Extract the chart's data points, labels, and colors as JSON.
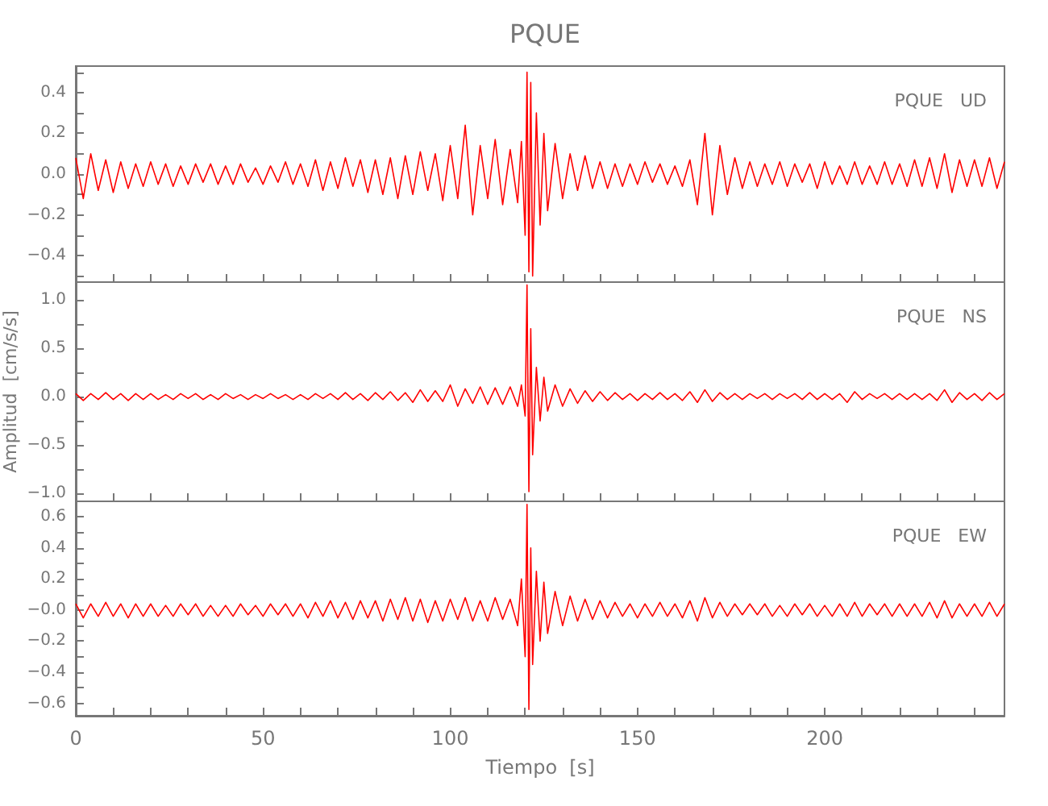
{
  "chart_data": [
    {
      "type": "line",
      "title": "PQUE",
      "annotations": [
        "PQUE   UD"
      ],
      "marker": "none",
      "line_style": "solid",
      "tick_labels": "y",
      "xlim": [
        0,
        248
      ],
      "xticks": [
        {
          "value": 0,
          "label": null
        },
        {
          "value": 10,
          "label": null
        },
        {
          "value": 20,
          "label": null
        },
        {
          "value": 30,
          "label": null
        },
        {
          "value": 40,
          "label": null
        },
        {
          "value": 50,
          "label": null
        },
        {
          "value": 60,
          "label": null
        },
        {
          "value": 70,
          "label": null
        },
        {
          "value": 80,
          "label": null
        },
        {
          "value": 90,
          "label": null
        },
        {
          "value": 100,
          "label": null
        },
        {
          "value": 110,
          "label": null
        },
        {
          "value": 120,
          "label": null
        },
        {
          "value": 130,
          "label": null
        },
        {
          "value": 140,
          "label": null
        },
        {
          "value": 150,
          "label": null
        },
        {
          "value": 160,
          "label": null
        },
        {
          "value": 170,
          "label": null
        },
        {
          "value": 180,
          "label": null
        },
        {
          "value": 190,
          "label": null
        },
        {
          "value": 200,
          "label": null
        },
        {
          "value": 210,
          "label": null
        },
        {
          "value": 220,
          "label": null
        },
        {
          "value": 230,
          "label": null
        },
        {
          "value": 240,
          "label": null
        }
      ],
      "ylim": [
        -0.53,
        0.53
      ],
      "yticks": [
        {
          "value": -0.5,
          "label": null
        },
        {
          "value": -0.4,
          "label": "−0.4"
        },
        {
          "value": -0.3,
          "label": null
        },
        {
          "value": -0.2,
          "label": "−0.2"
        },
        {
          "value": -0.1,
          "label": null
        },
        {
          "value": 0,
          "label": "0.0"
        },
        {
          "value": 0.1,
          "label": null
        },
        {
          "value": 0.2,
          "label": "0.2"
        },
        {
          "value": 0.3,
          "label": null
        },
        {
          "value": 0.4,
          "label": "0.4"
        },
        {
          "value": 0.5,
          "label": null
        }
      ],
      "x": [
        0,
        2,
        4,
        6,
        8,
        10,
        12,
        14,
        16,
        18,
        20,
        22,
        24,
        26,
        28,
        30,
        32,
        34,
        36,
        38,
        40,
        42,
        44,
        46,
        48,
        50,
        52,
        54,
        56,
        58,
        60,
        62,
        64,
        66,
        68,
        70,
        72,
        74,
        76,
        78,
        80,
        82,
        84,
        86,
        88,
        90,
        92,
        94,
        96,
        98,
        100,
        102,
        104,
        106,
        108,
        110,
        112,
        114,
        116,
        118,
        119,
        120,
        120.5,
        121,
        121.5,
        122,
        123,
        124,
        125,
        126,
        128,
        130,
        132,
        134,
        136,
        138,
        140,
        142,
        144,
        146,
        148,
        150,
        152,
        154,
        156,
        158,
        160,
        162,
        164,
        166,
        168,
        170,
        172,
        174,
        176,
        178,
        180,
        182,
        184,
        186,
        188,
        190,
        192,
        194,
        196,
        198,
        200,
        202,
        204,
        206,
        208,
        210,
        212,
        214,
        216,
        218,
        220,
        222,
        224,
        226,
        228,
        230,
        232,
        234,
        236,
        238,
        240,
        242,
        244,
        246,
        248
      ],
      "series": [
        {
          "color": "#ff0000",
          "values": [
            0.08,
            -0.12,
            0.1,
            -0.08,
            0.07,
            -0.09,
            0.06,
            -0.07,
            0.05,
            -0.06,
            0.06,
            -0.05,
            0.05,
            -0.06,
            0.04,
            -0.05,
            0.05,
            -0.04,
            0.05,
            -0.05,
            0.04,
            -0.05,
            0.05,
            -0.04,
            0.03,
            -0.05,
            0.04,
            -0.04,
            0.06,
            -0.05,
            0.05,
            -0.06,
            0.07,
            -0.08,
            0.06,
            -0.07,
            0.08,
            -0.06,
            0.07,
            -0.09,
            0.07,
            -0.1,
            0.08,
            -0.12,
            0.09,
            -0.1,
            0.11,
            -0.08,
            0.1,
            -0.13,
            0.14,
            -0.12,
            0.24,
            -0.2,
            0.14,
            -0.12,
            0.17,
            -0.15,
            0.12,
            -0.14,
            0.16,
            -0.3,
            0.5,
            -0.48,
            0.45,
            -0.5,
            0.3,
            -0.25,
            0.2,
            -0.18,
            0.15,
            -0.12,
            0.1,
            -0.08,
            0.09,
            -0.07,
            0.06,
            -0.07,
            0.05,
            -0.06,
            0.05,
            -0.05,
            0.06,
            -0.04,
            0.05,
            -0.05,
            0.04,
            -0.06,
            0.07,
            -0.15,
            0.2,
            -0.2,
            0.14,
            -0.1,
            0.08,
            -0.07,
            0.06,
            -0.06,
            0.05,
            -0.05,
            0.06,
            -0.06,
            0.05,
            -0.04,
            0.05,
            -0.07,
            0.06,
            -0.05,
            0.04,
            -0.05,
            0.06,
            -0.05,
            0.04,
            -0.05,
            0.06,
            -0.05,
            0.05,
            -0.06,
            0.07,
            -0.06,
            0.08,
            -0.07,
            0.1,
            -0.09,
            0.07,
            -0.06,
            0.07,
            -0.06,
            0.08,
            -0.07,
            0.06
          ]
        }
      ]
    },
    {
      "type": "line",
      "ylabel": "Amplitud  [cm/s/s]",
      "annotations": [
        "PQUE   NS"
      ],
      "marker": "none",
      "line_style": "solid",
      "tick_labels": "y",
      "xlim": [
        0,
        248
      ],
      "xticks": [
        {
          "value": 0,
          "label": null
        },
        {
          "value": 10,
          "label": null
        },
        {
          "value": 20,
          "label": null
        },
        {
          "value": 30,
          "label": null
        },
        {
          "value": 40,
          "label": null
        },
        {
          "value": 50,
          "label": null
        },
        {
          "value": 60,
          "label": null
        },
        {
          "value": 70,
          "label": null
        },
        {
          "value": 80,
          "label": null
        },
        {
          "value": 90,
          "label": null
        },
        {
          "value": 100,
          "label": null
        },
        {
          "value": 110,
          "label": null
        },
        {
          "value": 120,
          "label": null
        },
        {
          "value": 130,
          "label": null
        },
        {
          "value": 140,
          "label": null
        },
        {
          "value": 150,
          "label": null
        },
        {
          "value": 160,
          "label": null
        },
        {
          "value": 170,
          "label": null
        },
        {
          "value": 180,
          "label": null
        },
        {
          "value": 190,
          "label": null
        },
        {
          "value": 200,
          "label": null
        },
        {
          "value": 210,
          "label": null
        },
        {
          "value": 220,
          "label": null
        },
        {
          "value": 230,
          "label": null
        },
        {
          "value": 240,
          "label": null
        }
      ],
      "ylim": [
        -1.08,
        1.18
      ],
      "yticks": [
        {
          "value": -1,
          "label": "−1.0"
        },
        {
          "value": -0.75,
          "label": null
        },
        {
          "value": -0.5,
          "label": "−0.5"
        },
        {
          "value": -0.25,
          "label": null
        },
        {
          "value": 0,
          "label": "0.0"
        },
        {
          "value": 0.25,
          "label": null
        },
        {
          "value": 0.5,
          "label": "0.5"
        },
        {
          "value": 0.75,
          "label": null
        },
        {
          "value": 1,
          "label": "1.0"
        }
      ],
      "x": [
        0,
        2,
        4,
        6,
        8,
        10,
        12,
        14,
        16,
        18,
        20,
        22,
        24,
        26,
        28,
        30,
        32,
        34,
        36,
        38,
        40,
        42,
        44,
        46,
        48,
        50,
        52,
        54,
        56,
        58,
        60,
        62,
        64,
        66,
        68,
        70,
        72,
        74,
        76,
        78,
        80,
        82,
        84,
        86,
        88,
        90,
        92,
        94,
        96,
        98,
        100,
        102,
        104,
        106,
        108,
        110,
        112,
        114,
        116,
        118,
        119,
        120,
        120.5,
        121,
        121.5,
        122,
        123,
        124,
        125,
        126,
        128,
        130,
        132,
        134,
        136,
        138,
        140,
        142,
        144,
        146,
        148,
        150,
        152,
        154,
        156,
        158,
        160,
        162,
        164,
        166,
        168,
        170,
        172,
        174,
        176,
        178,
        180,
        182,
        184,
        186,
        188,
        190,
        192,
        194,
        196,
        198,
        200,
        202,
        204,
        206,
        208,
        210,
        212,
        214,
        216,
        218,
        220,
        222,
        224,
        226,
        228,
        230,
        232,
        234,
        236,
        238,
        240,
        242,
        244,
        246,
        248
      ],
      "series": [
        {
          "color": "#ff0000",
          "values": [
            0.03,
            -0.04,
            0.03,
            -0.03,
            0.04,
            -0.03,
            0.03,
            -0.04,
            0.03,
            -0.03,
            0.03,
            -0.03,
            0.02,
            -0.03,
            0.03,
            -0.02,
            0.03,
            -0.03,
            0.02,
            -0.03,
            0.03,
            -0.02,
            0.02,
            -0.03,
            0.02,
            -0.02,
            0.03,
            -0.02,
            0.02,
            -0.03,
            0.02,
            -0.03,
            0.03,
            -0.02,
            0.03,
            -0.03,
            0.04,
            -0.03,
            0.03,
            -0.04,
            0.04,
            -0.03,
            0.05,
            -0.04,
            0.04,
            -0.06,
            0.07,
            -0.05,
            0.06,
            -0.05,
            0.12,
            -0.1,
            0.08,
            -0.07,
            0.1,
            -0.08,
            0.09,
            -0.08,
            0.1,
            -0.1,
            0.12,
            -0.2,
            1.15,
            -0.98,
            0.7,
            -0.6,
            0.3,
            -0.25,
            0.2,
            -0.15,
            0.12,
            -0.1,
            0.08,
            -0.07,
            0.06,
            -0.05,
            0.05,
            -0.04,
            0.04,
            -0.03,
            0.03,
            -0.04,
            0.03,
            -0.03,
            0.04,
            -0.03,
            0.03,
            -0.04,
            0.05,
            -0.06,
            0.07,
            -0.05,
            0.04,
            -0.03,
            0.03,
            -0.03,
            0.03,
            -0.02,
            0.03,
            -0.03,
            0.03,
            -0.02,
            0.03,
            -0.03,
            0.04,
            -0.03,
            0.03,
            -0.03,
            0.03,
            -0.06,
            0.05,
            -0.03,
            0.03,
            -0.02,
            0.03,
            -0.03,
            0.03,
            -0.03,
            0.03,
            -0.03,
            0.03,
            -0.04,
            0.07,
            -0.06,
            0.04,
            -0.03,
            0.03,
            -0.04,
            0.04,
            -0.03,
            0.03
          ]
        }
      ]
    },
    {
      "type": "line",
      "xlabel": "Tiempo  [s]",
      "annotations": [
        "PQUE   EW"
      ],
      "marker": "none",
      "line_style": "solid",
      "xlim": [
        0,
        248
      ],
      "xticks": [
        0,
        {
          "value": 10,
          "label": null
        },
        {
          "value": 20,
          "label": null
        },
        {
          "value": 30,
          "label": null
        },
        {
          "value": 40,
          "label": null
        },
        50,
        {
          "value": 60,
          "label": null
        },
        {
          "value": 70,
          "label": null
        },
        {
          "value": 80,
          "label": null
        },
        {
          "value": 90,
          "label": null
        },
        100,
        {
          "value": 110,
          "label": null
        },
        {
          "value": 120,
          "label": null
        },
        {
          "value": 130,
          "label": null
        },
        {
          "value": 140,
          "label": null
        },
        150,
        {
          "value": 160,
          "label": null
        },
        {
          "value": 170,
          "label": null
        },
        {
          "value": 180,
          "label": null
        },
        {
          "value": 190,
          "label": null
        },
        200,
        {
          "value": 210,
          "label": null
        },
        {
          "value": 220,
          "label": null
        },
        {
          "value": 230,
          "label": null
        },
        {
          "value": 240,
          "label": null
        }
      ],
      "ylim": [
        -0.68,
        0.7
      ],
      "yticks": [
        {
          "value": -0.6,
          "label": "−0.6"
        },
        {
          "value": -0.5,
          "label": null
        },
        {
          "value": -0.4,
          "label": "−0.4"
        },
        {
          "value": -0.3,
          "label": null
        },
        {
          "value": -0.2,
          "label": "−0.2"
        },
        {
          "value": -0.1,
          "label": null
        },
        {
          "value": 0,
          "label": "−0.0"
        },
        {
          "value": 0.1,
          "label": null
        },
        {
          "value": 0.2,
          "label": "0.2"
        },
        {
          "value": 0.3,
          "label": null
        },
        {
          "value": 0.4,
          "label": "0.4"
        },
        {
          "value": 0.5,
          "label": null
        },
        {
          "value": 0.6,
          "label": "0.6"
        }
      ],
      "x": [
        0,
        2,
        4,
        6,
        8,
        10,
        12,
        14,
        16,
        18,
        20,
        22,
        24,
        26,
        28,
        30,
        32,
        34,
        36,
        38,
        40,
        42,
        44,
        46,
        48,
        50,
        52,
        54,
        56,
        58,
        60,
        62,
        64,
        66,
        68,
        70,
        72,
        74,
        76,
        78,
        80,
        82,
        84,
        86,
        88,
        90,
        92,
        94,
        96,
        98,
        100,
        102,
        104,
        106,
        108,
        110,
        112,
        114,
        116,
        118,
        119,
        120,
        120.5,
        121,
        121.5,
        122,
        123,
        124,
        125,
        126,
        128,
        130,
        132,
        134,
        136,
        138,
        140,
        142,
        144,
        146,
        148,
        150,
        152,
        154,
        156,
        158,
        160,
        162,
        164,
        166,
        168,
        170,
        172,
        174,
        176,
        178,
        180,
        182,
        184,
        186,
        188,
        190,
        192,
        194,
        196,
        198,
        200,
        202,
        204,
        206,
        208,
        210,
        212,
        214,
        216,
        218,
        220,
        222,
        224,
        226,
        228,
        230,
        232,
        234,
        236,
        238,
        240,
        242,
        244,
        246,
        248
      ],
      "series": [
        {
          "color": "#ff0000",
          "values": [
            0.04,
            -0.05,
            0.04,
            -0.04,
            0.05,
            -0.04,
            0.04,
            -0.05,
            0.04,
            -0.04,
            0.04,
            -0.04,
            0.03,
            -0.04,
            0.04,
            -0.03,
            0.04,
            -0.04,
            0.03,
            -0.04,
            0.03,
            -0.04,
            0.04,
            -0.03,
            0.03,
            -0.04,
            0.04,
            -0.03,
            0.04,
            -0.04,
            0.04,
            -0.05,
            0.05,
            -0.04,
            0.06,
            -0.05,
            0.05,
            -0.06,
            0.06,
            -0.05,
            0.06,
            -0.07,
            0.07,
            -0.06,
            0.08,
            -0.07,
            0.07,
            -0.08,
            0.06,
            -0.07,
            0.07,
            -0.06,
            0.08,
            -0.07,
            0.06,
            -0.07,
            0.08,
            -0.06,
            0.07,
            -0.1,
            0.2,
            -0.3,
            0.68,
            -0.64,
            0.4,
            -0.35,
            0.25,
            -0.2,
            0.18,
            -0.15,
            0.12,
            -0.1,
            0.09,
            -0.07,
            0.07,
            -0.06,
            0.06,
            -0.05,
            0.05,
            -0.04,
            0.04,
            -0.05,
            0.04,
            -0.04,
            0.05,
            -0.04,
            0.04,
            -0.05,
            0.06,
            -0.07,
            0.08,
            -0.05,
            0.05,
            -0.04,
            0.04,
            -0.03,
            0.04,
            -0.03,
            0.04,
            -0.04,
            0.03,
            -0.04,
            0.04,
            -0.03,
            0.04,
            -0.04,
            0.03,
            -0.04,
            0.04,
            -0.04,
            0.05,
            -0.04,
            0.04,
            -0.03,
            0.04,
            -0.04,
            0.04,
            -0.04,
            0.04,
            -0.04,
            0.05,
            -0.05,
            0.06,
            -0.05,
            0.04,
            -0.04,
            0.04,
            -0.04,
            0.05,
            -0.04,
            0.04
          ]
        }
      ]
    }
  ]
}
